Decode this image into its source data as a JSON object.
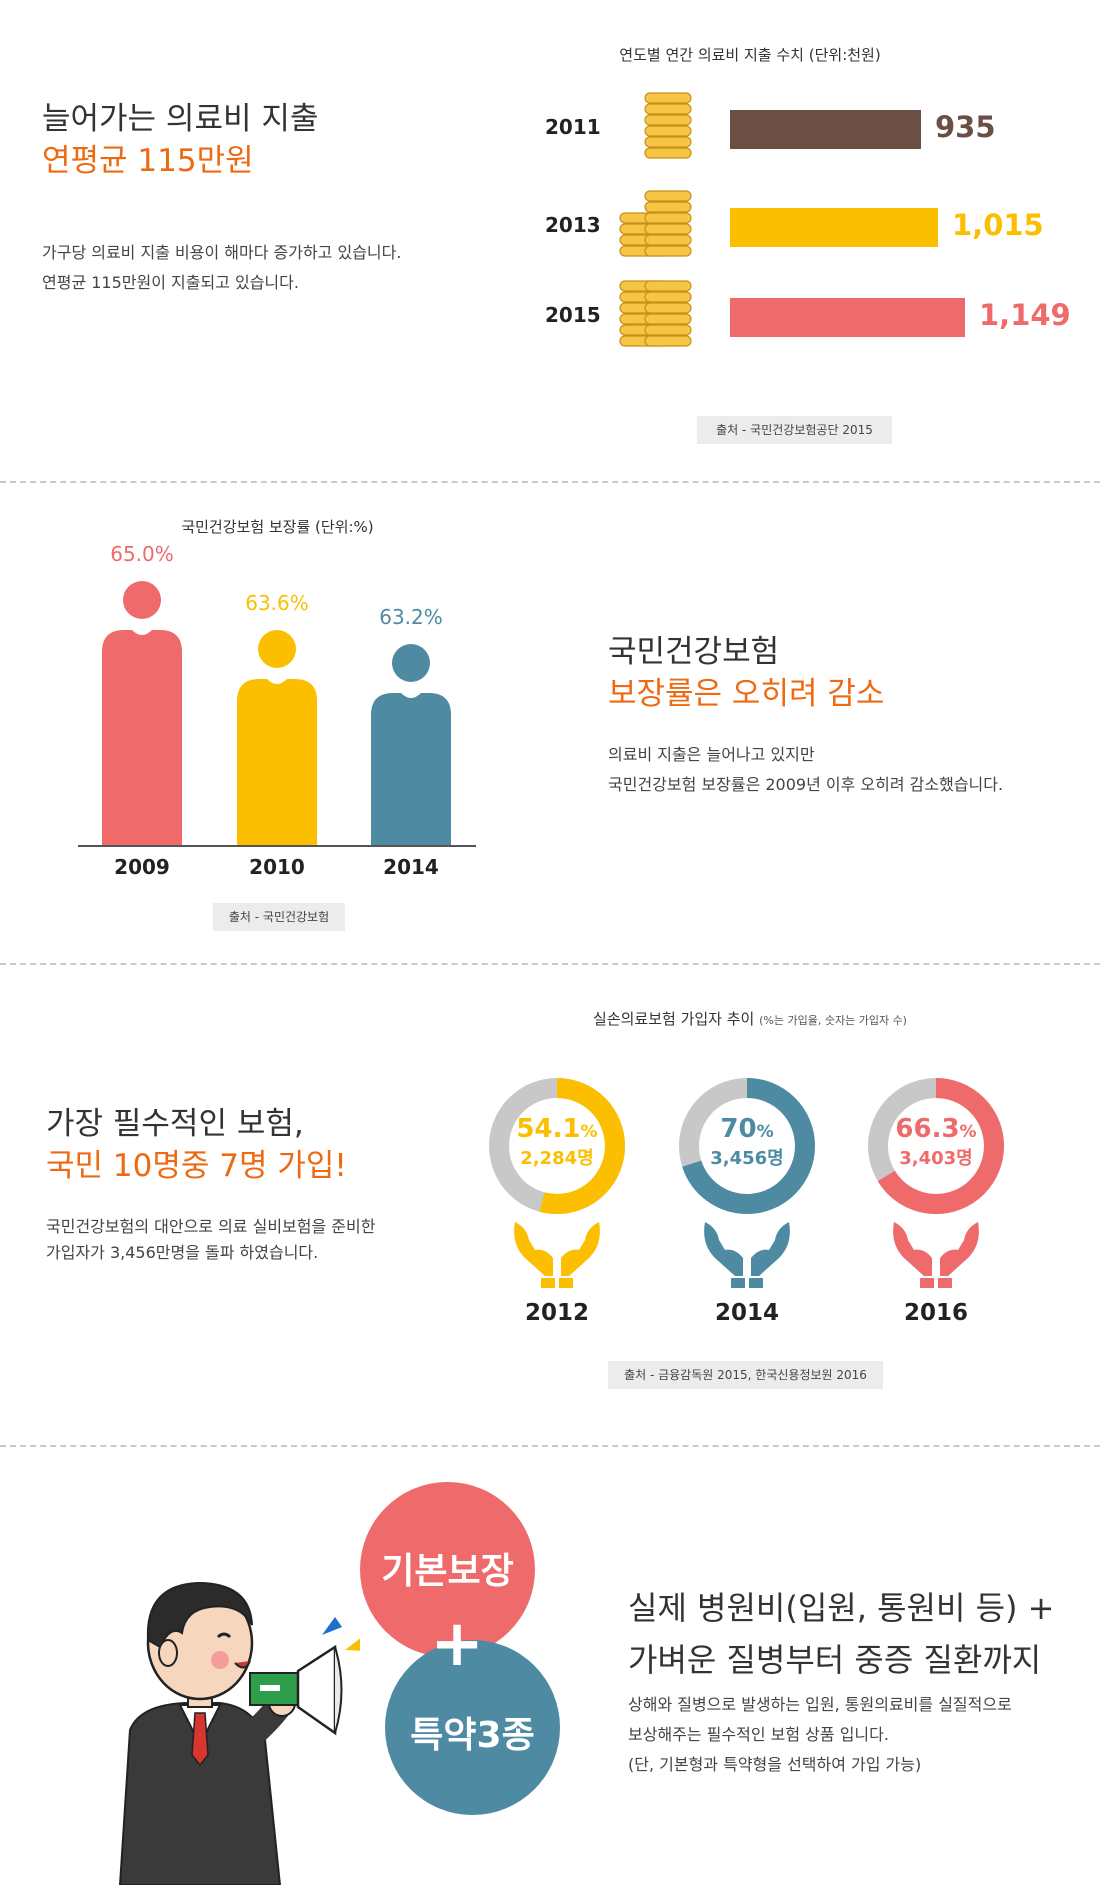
{
  "section1": {
    "heading_line1": "늘어가는 의료비 지출",
    "heading_line2": "연평균 115만원",
    "desc_line1": "가구당 의료비 지출 비용이 해마다 증가하고 있습니다.",
    "desc_line2": "연평균 115만원이 지출되고 있습니다.",
    "source": "출처 - 국민건강보험공단 2015"
  },
  "section2": {
    "heading_line1": "국민건강보험",
    "heading_line2": "보장률은 오히려 감소",
    "desc_line1": "의료비 지출은 늘어나고 있지만",
    "desc_line2": "국민건강보험 보장률은 2009년 이후 오히려 감소했습니다.",
    "source": "출처 - 국민건강보험"
  },
  "section3": {
    "heading_line1": "가장 필수적인 보험,",
    "heading_line2": "국민 10명중 7명 가입!",
    "desc_line1": "국민건강보험의 대안으로 의료 실비보험을 준비한",
    "desc_line2": "가입자가 3,456만명을 돌파 하였습니다.",
    "chart_title_main": "실손의료보험 가입자 추이",
    "chart_title_note": "(%는 가입율, 숫자는 가입자 수)",
    "source": "출처 - 금융감독원 2015, 한국신용정보원 2016"
  },
  "section4": {
    "bubble_top": "기본보장",
    "bubble_plus": "+",
    "bubble_bottom": "특약3종",
    "heading_line1": "실제 병원비(입원, 통원비 등) +",
    "heading_line2": "가벼운 질병부터 중증 질환까지",
    "desc_line1": "상해와 질병으로 발생하는 입원, 통원의료비를 실질적으로",
    "desc_line2": "보상해주는 필수적인 보험 상품 입니다.",
    "desc_line3": "(단, 기본형과 특약형을 선택하여 가입 가능)"
  },
  "colors": {
    "accent": "#ee6a12",
    "brown": "#6b4f45",
    "yellow": "#fbbf00",
    "red": "#ef6b6b",
    "teal": "#4e8ba3",
    "gray": "#c8c8c8"
  },
  "chart_data": [
    {
      "type": "bar",
      "orientation": "horizontal",
      "title": "연도별 연간 의료비 지출 수치 (단위:천원)",
      "categories": [
        "2011",
        "2013",
        "2015"
      ],
      "values": [
        935,
        1015,
        1149
      ],
      "value_labels": [
        "935",
        "1,015",
        "1,149"
      ],
      "colors": [
        "#6b4f45",
        "#fbbf00",
        "#ef6b6b"
      ]
    },
    {
      "type": "bar",
      "title": "국민건강보험 보장률 (단위:%)",
      "categories": [
        "2009",
        "2010",
        "2014"
      ],
      "values": [
        65.0,
        63.6,
        63.2
      ],
      "value_labels": [
        "65.0%",
        "63.6%",
        "63.2%"
      ],
      "colors": [
        "#ef6b6b",
        "#fbbf00",
        "#4e8ba3"
      ]
    },
    {
      "type": "pie",
      "categories": [
        "2012",
        "2014",
        "2016"
      ],
      "values": [
        54.1,
        70,
        66.3
      ],
      "percent_labels": [
        "54.1",
        "70",
        "66.3"
      ],
      "percent_unit": "%",
      "counts": [
        "2,284명",
        "3,456명",
        "3,403명"
      ],
      "colors": [
        "#fbbf00",
        "#4e8ba3",
        "#ef6b6b"
      ],
      "remainder_color": "#c8c8c8"
    }
  ]
}
